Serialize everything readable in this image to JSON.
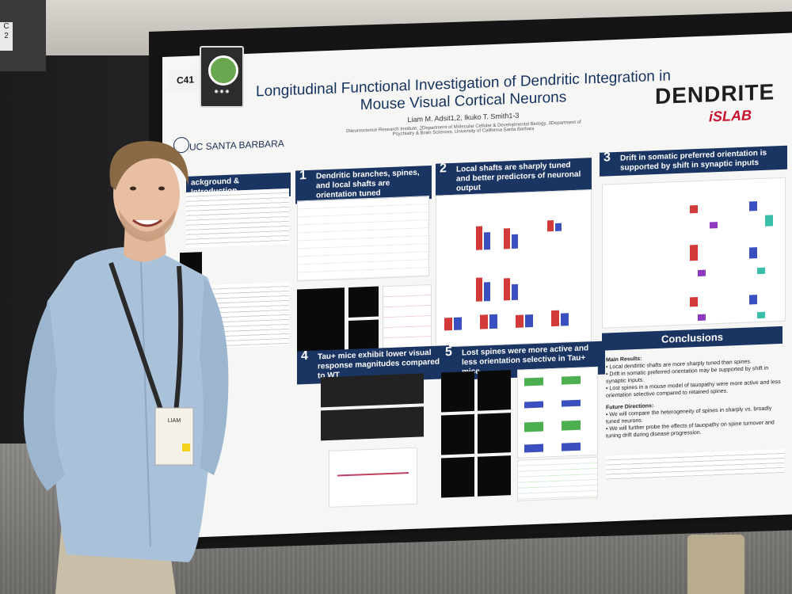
{
  "booth": {
    "number": "C41",
    "aisle_sign": "C\n2"
  },
  "poster": {
    "title_line1": "Longitudinal Functional Investigation of Dendritic Integration in",
    "title_line2": "Mouse Visual Cortical Neurons",
    "authors": "Liam M. Adsit1,2, Ikuko T. Smith1-3",
    "affiliation": "1Neuroscience Research Institute, 2Department of Molecular Cellular & Developmental Biology, 3Department of Psychiatry & Brain Sciences, University of California Santa Barbara",
    "institution": "UC SANTA BARBARA",
    "lab_logo": "DENDRITE",
    "lab_sub": "iSLAB",
    "sections": [
      {
        "num": "1",
        "title": "Dendritic branches, spines, and local shafts are orientation tuned"
      },
      {
        "num": "2",
        "title": "Local shafts are sharply tuned and better predictors of neuronal output"
      },
      {
        "num": "3",
        "title": "Drift in somatic preferred orientation is supported by shift in synaptic inputs"
      },
      {
        "num": "4",
        "title": "Tau+ mice exhibit lower visual response magnitudes compared to WT"
      },
      {
        "num": "5",
        "title": "Lost spines were more active and less orientation selective in Tau+ mice"
      }
    ],
    "background_title": "ackground & Introduction",
    "conclusions": {
      "title": "Conclusions",
      "main_results_label": "Main Results:",
      "results": [
        "Local dendritic shafts are more sharply tuned than spines.",
        "Drift in somatic preferred orientation may be supported by shift in synaptic inputs.",
        "Lost spines in a mouse model of tauopathy were more active and less orientation selective compared to retained spines."
      ],
      "future_label": "Future Directions:",
      "future": [
        "We will compare the heterogeneity of spines in sharply vs. broadly tuned neurons.",
        "We will further probe the effects of tauopathy on spine turnover and tuning drift during disease progression."
      ]
    }
  },
  "badge": {
    "name": "LIAM"
  },
  "colors": {
    "header_blue": "#1b3563",
    "title_blue": "#14325e",
    "islab_red": "#c8102e",
    "shirt": "#a8c0d8",
    "lanyard": "#2a2a2a"
  }
}
